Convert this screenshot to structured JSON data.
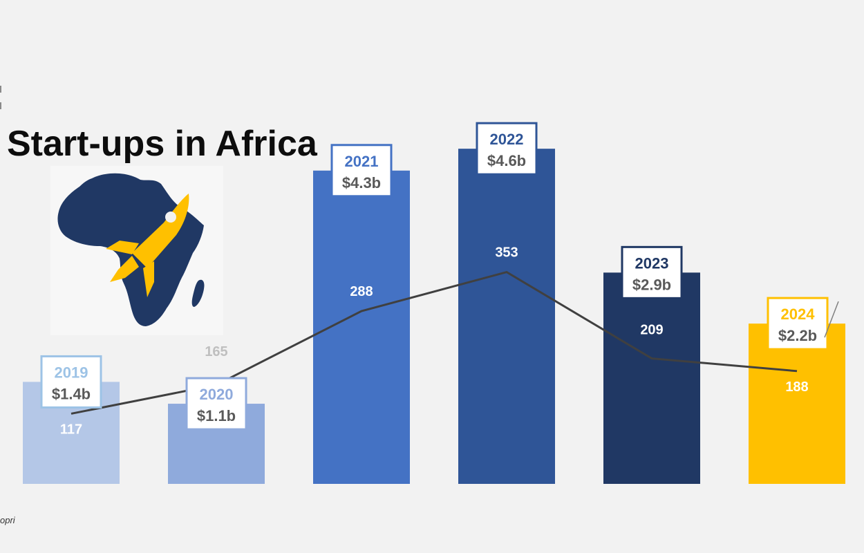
{
  "chart_data": {
    "type": "bar",
    "title": "Start-ups in Africa",
    "categories": [
      "2019",
      "2020",
      "2021",
      "2022",
      "2023",
      "2024"
    ],
    "series": [
      {
        "values": [
          1.4,
          1.1,
          4.3,
          4.6,
          2.9,
          2.2
        ],
        "labels": [
          "$1.4b",
          "$1.1b",
          "$4.3b",
          "$4.6b",
          "$2.9b",
          "$2.2b"
        ]
      },
      {
        "type": "line",
        "values": [
          117,
          165,
          288,
          353,
          209,
          188
        ]
      }
    ],
    "colors": {
      "bars": [
        "#b4c7e7",
        "#8faadc",
        "#4472c4",
        "#2f5597",
        "#203864",
        "#ffc000"
      ],
      "year_text": [
        "#9dc3e6",
        "#8faadc",
        "#4472c4",
        "#2f5597",
        "#203864",
        "#ffc000"
      ],
      "value_text": "#595959",
      "line": "#404040",
      "background": "#f2f2f2"
    },
    "legend": "none",
    "grid": false
  },
  "logo": {
    "icon": "africa-rocket-icon",
    "colors": {
      "continent": "#203864",
      "rocket": "#ffc000"
    }
  },
  "footnote": "opri"
}
